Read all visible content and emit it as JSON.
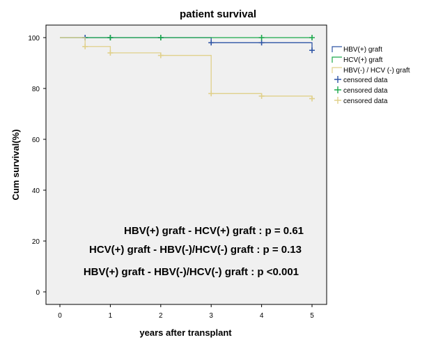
{
  "chart_data": {
    "type": "line",
    "step": true,
    "title": "patient survival",
    "xlabel": "years after transplant",
    "ylabel": "Cum survival(%)",
    "xlim": [
      0,
      5
    ],
    "ylim": [
      0,
      100
    ],
    "xticks": [
      0,
      1,
      2,
      3,
      4,
      5
    ],
    "yticks": [
      0,
      20,
      40,
      60,
      80,
      100
    ],
    "grid": false,
    "plot_background": "#f0f0f0",
    "legend_position": "right",
    "series": [
      {
        "name": "HBV(+) graft",
        "color": "#2e54a5",
        "x": [
          0,
          3,
          5,
          5
        ],
        "y": [
          100,
          98,
          95,
          95
        ],
        "censored": {
          "name": "censored data",
          "x": [
            0.5,
            1,
            2,
            3,
            4,
            5
          ],
          "y": [
            100,
            100,
            100,
            98,
            98,
            95
          ]
        }
      },
      {
        "name": "HCV(+) graft",
        "color": "#1aa84a",
        "x": [
          0,
          5
        ],
        "y": [
          100,
          100
        ],
        "censored": {
          "name": "censored data",
          "x": [
            1,
            2,
            4,
            5
          ],
          "y": [
            100,
            100,
            100,
            100
          ]
        }
      },
      {
        "name": "HBV(-) / HCV (-) graft",
        "color": "#e0d08a",
        "x": [
          0,
          0.5,
          1,
          2,
          3,
          4,
          5
        ],
        "y": [
          100,
          96.5,
          94,
          93,
          78,
          77,
          76
        ],
        "censored": {
          "name": "censored data",
          "x": [
            0.5,
            1,
            2,
            3,
            4,
            5
          ],
          "y": [
            96.5,
            94,
            93,
            78,
            77,
            76
          ]
        }
      }
    ],
    "annotations": [
      "HBV(+) graft - HCV(+) graft : p = 0.61",
      "HCV(+) graft - HBV(-)/HCV(-) graft : p = 0.13",
      "HBV(+) graft - HBV(-)/HCV(-) graft : p <0.001"
    ]
  }
}
